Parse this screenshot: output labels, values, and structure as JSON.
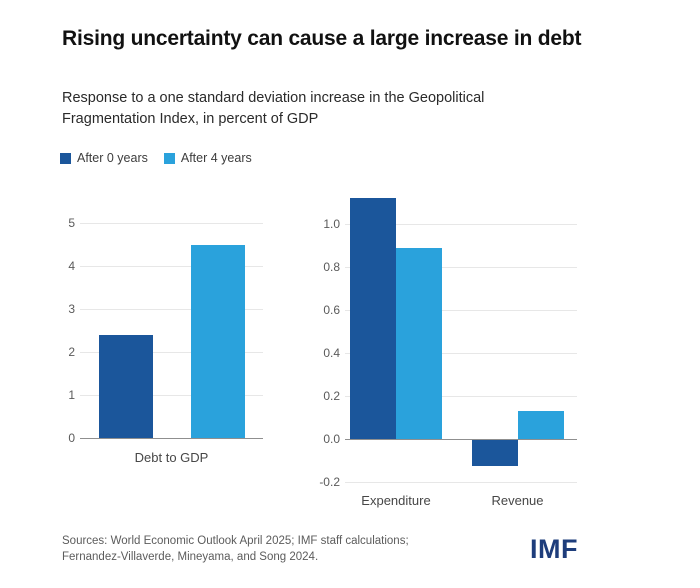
{
  "page": {
    "title": "Rising uncertainty can cause a large increase in debt",
    "subtitle": "Response to a one standard deviation increase in the Geopolitical Fragmentation Index, in percent of GDP",
    "source_line1": "Sources: World Economic Outlook April 2025; IMF staff calculations;",
    "source_line2": "Fernandez-Villaverde, Mineyama, and Song 2024.",
    "logo_text": "IMF"
  },
  "colors": {
    "series_dark_blue": "#1b569b",
    "series_light_blue": "#2aa2dc",
    "logo_navy": "#1e3d7b",
    "gridline": "#e7e7e7",
    "zero_axis": "#8f8f8f"
  },
  "legend": {
    "position": "top-left",
    "items": [
      {
        "label": "After 0 years",
        "color": "#1b569b"
      },
      {
        "label": "After 4 years",
        "color": "#2aa2dc"
      }
    ]
  },
  "chart_data": [
    {
      "type": "bar",
      "title": "",
      "xlabel": "",
      "ylabel": "",
      "categories": [
        "Debt to GDP"
      ],
      "series": [
        {
          "name": "After 0 years",
          "color": "#1b569b",
          "values": [
            2.4
          ]
        },
        {
          "name": "After 4 years",
          "color": "#2aa2dc",
          "values": [
            4.5
          ]
        }
      ],
      "ylim": [
        0,
        5.3
      ],
      "ytick_values": [
        0,
        1,
        2,
        3,
        4,
        5
      ],
      "ytick_labels": [
        "0",
        "1",
        "2",
        "3",
        "4",
        "5"
      ],
      "grid": true,
      "legend_position": "top-left-shared"
    },
    {
      "type": "bar",
      "title": "",
      "xlabel": "",
      "ylabel": "",
      "categories": [
        "Expenditure",
        "Revenue"
      ],
      "series": [
        {
          "name": "After 0 years",
          "color": "#1b569b",
          "values": [
            1.12,
            -0.12
          ]
        },
        {
          "name": "After 4 years",
          "color": "#2aa2dc",
          "values": [
            0.89,
            0.13
          ]
        }
      ],
      "ylim": [
        -0.25,
        1.15
      ],
      "ytick_values": [
        -0.2,
        0,
        0.2,
        0.4,
        0.6,
        0.8,
        1.0
      ],
      "ytick_labels": [
        "-0.2",
        "0.0",
        "0.2",
        "0.4",
        "0.6",
        "0.8",
        "1.0"
      ],
      "grid": true,
      "legend_position": "top-left-shared"
    }
  ]
}
